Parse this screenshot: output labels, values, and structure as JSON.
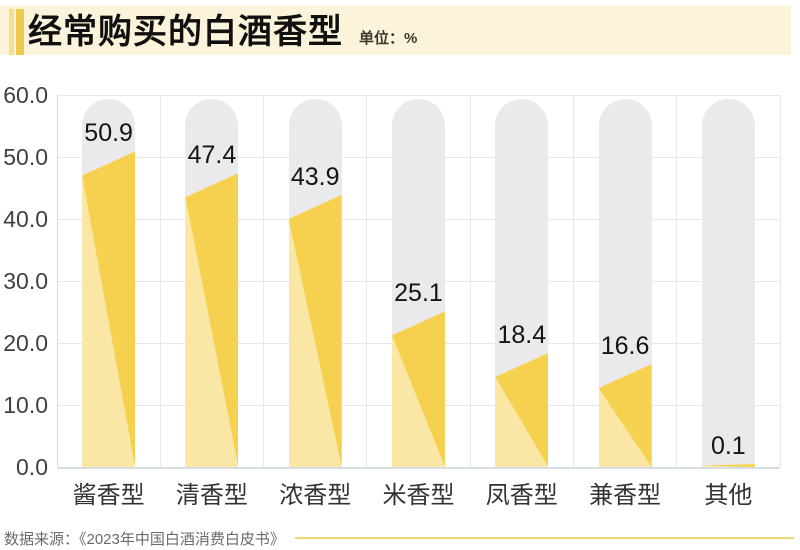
{
  "header": {
    "title": "经常购买的白酒香型",
    "unit_label": "单位：%"
  },
  "chart_data": {
    "type": "bar",
    "title": "经常购买的白酒香型",
    "unit": "%",
    "categories": [
      "酱香型",
      "清香型",
      "浓香型",
      "米香型",
      "凤香型",
      "兼香型",
      "其他"
    ],
    "values": [
      50.9,
      47.4,
      43.9,
      25.1,
      18.4,
      16.6,
      0.1
    ],
    "value_labels": [
      "50.9",
      "47.4",
      "43.9",
      "25.1",
      "18.4",
      "16.6",
      "0.1"
    ],
    "xlabel": "",
    "ylabel": "",
    "ylim": [
      0,
      60
    ],
    "ytick_step": 10,
    "ytick_labels": [
      "0.0",
      "10.0",
      "20.0",
      "30.0",
      "40.0",
      "50.0",
      "60.0"
    ],
    "grid": true,
    "legend": false
  },
  "footer": {
    "source": "数据来源：《2023年中国白酒消费白皮书》"
  },
  "colors": {
    "band_bg": "#FBF4DB",
    "accent_light": "#F5DE90",
    "accent_dark": "#EFC94D",
    "bar_dark": "#F6D04F",
    "bar_light": "#FAE7A5",
    "track": "#EAEAEC",
    "gridline": "#E8E8E8",
    "source_line": "#E9D76F"
  }
}
